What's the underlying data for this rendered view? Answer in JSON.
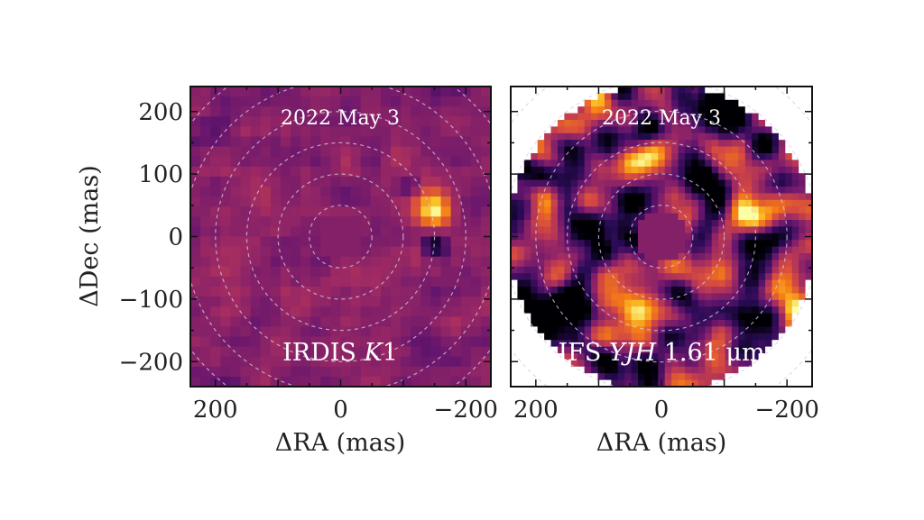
{
  "chart_data": [
    {
      "type": "heatmap",
      "panel": "left",
      "date_label": "2022 May 3",
      "instrument_label": {
        "prefix": "IRDIS ",
        "italic": "K",
        "suffix": "1"
      },
      "xlabel": "ΔRA (mas)",
      "ylabel": "ΔDec (mas)",
      "xlim": [
        240,
        -240
      ],
      "ylim": [
        -240,
        240
      ],
      "xticks": [
        200,
        0,
        -200
      ],
      "yticks": [
        200,
        100,
        0,
        -100,
        -200
      ],
      "ytick_labels": [
        "200",
        "100",
        "0",
        "−100",
        "−200"
      ],
      "xtick_labels": [
        "200",
        "0",
        "−200"
      ],
      "colormap": "inferno",
      "coronagraph_mask_radius_mas": 40,
      "grid": "dashed circles",
      "grid_circle_radii_mas": [
        50,
        100,
        150,
        200,
        250,
        300
      ],
      "sources": [
        {
          "x_mas": -150,
          "y_mas": 40,
          "intensity": 1.0,
          "sigma_mas": 22
        },
        {
          "x_mas": -150,
          "y_mas": -15,
          "intensity": -0.6,
          "sigma_mas": 14
        },
        {
          "x_mas": -110,
          "y_mas": 80,
          "intensity": -0.3,
          "sigma_mas": 12
        }
      ]
    },
    {
      "type": "heatmap",
      "panel": "right",
      "date_label": "2022 May 3",
      "instrument_label": {
        "prefix": "IFS ",
        "italic": "YJH",
        "suffix": " 1.61 μm"
      },
      "xlabel": "ΔRA (mas)",
      "xlim": [
        240,
        -240
      ],
      "ylim": [
        -240,
        240
      ],
      "xticks": [
        200,
        0,
        -200
      ],
      "xtick_labels": [
        "200",
        "0",
        "−200"
      ],
      "colormap": "inferno",
      "coronagraph_mask_radius_mas": 40,
      "field_radius_mas": 245,
      "grid": "dashed circles",
      "grid_circle_radii_mas": [
        50,
        100,
        150,
        200,
        250,
        300
      ],
      "sources": [
        {
          "x_mas": -140,
          "y_mas": 40,
          "intensity": 1.0,
          "sigma_mas": 25
        },
        {
          "x_mas": -140,
          "y_mas": -20,
          "intensity": -0.8,
          "sigma_mas": 18
        },
        {
          "x_mas": -110,
          "y_mas": 190,
          "intensity": -1.0,
          "sigma_mas": 30
        },
        {
          "x_mas": 220,
          "y_mas": 160,
          "intensity": 0.6,
          "sigma_mas": 35
        },
        {
          "x_mas": 190,
          "y_mas": -140,
          "intensity": -1.0,
          "sigma_mas": 45
        },
        {
          "x_mas": 50,
          "y_mas": 60,
          "intensity": -0.8,
          "sigma_mas": 20
        },
        {
          "x_mas": -210,
          "y_mas": -130,
          "intensity": 0.8,
          "sigma_mas": 20
        },
        {
          "x_mas": -20,
          "y_mas": 80,
          "intensity": 0.6,
          "sigma_mas": 20
        }
      ]
    }
  ]
}
